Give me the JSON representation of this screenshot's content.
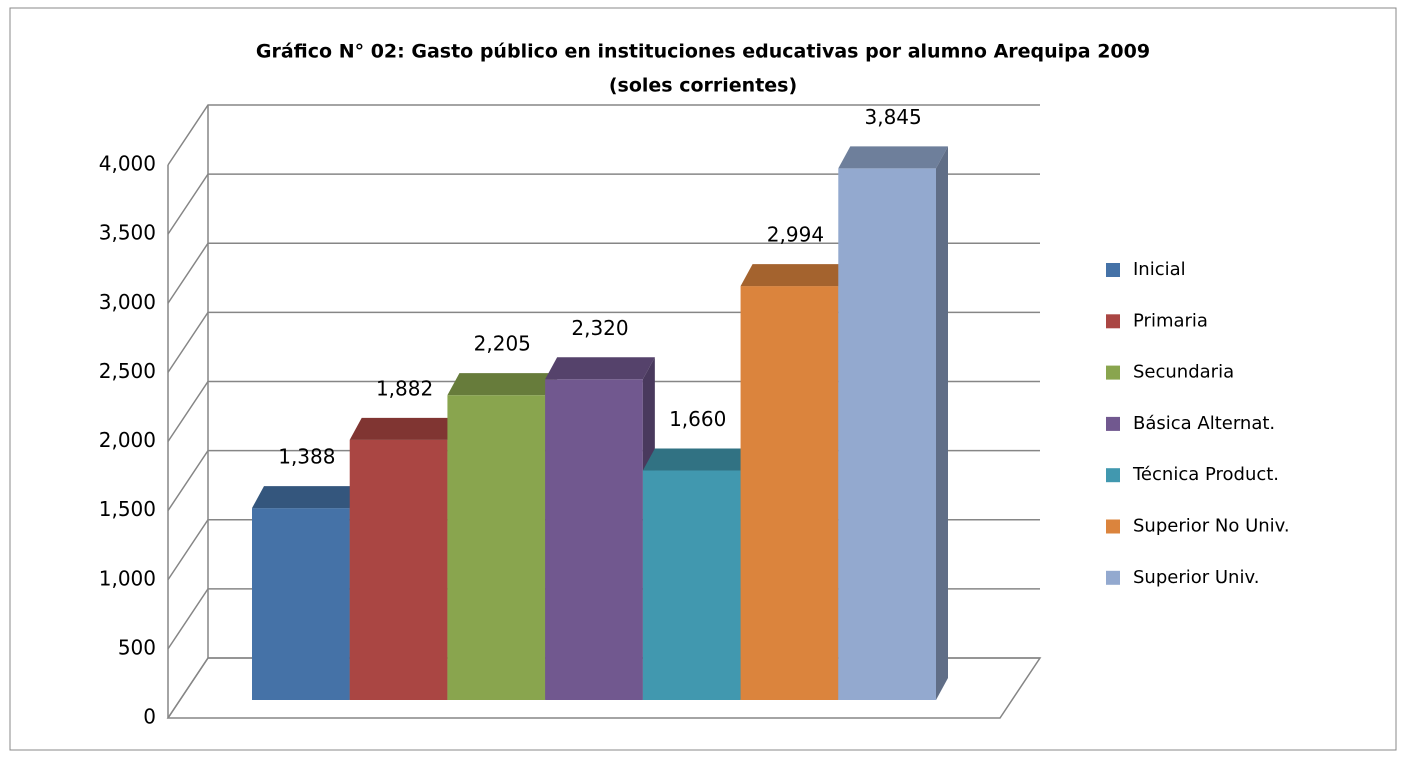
{
  "chart_data": {
    "type": "bar3d",
    "title": "Gráfico N° 02: Gasto público en instituciones educativas por alumno Arequipa 2009",
    "subtitle": "(soles corrientes)",
    "categories": [
      "Inicial",
      "Primaria",
      "Secundaria",
      "Básica Alternat.",
      "Técnica Product.",
      "Superior No Univ.",
      "Superior Univ."
    ],
    "values": [
      1388,
      1882,
      2205,
      2320,
      1660,
      2994,
      3845
    ],
    "value_labels": [
      "1,388",
      "1,882",
      "2,205",
      "2,320",
      "1,660",
      "2,994",
      "3,845"
    ],
    "colors": [
      "#4572a7",
      "#aa4643",
      "#89a54e",
      "#71588f",
      "#4198af",
      "#db843d",
      "#93a9cf"
    ],
    "ylim": [
      0,
      4000
    ],
    "yticks": [
      0,
      500,
      {
        "value": 1000,
        "label": "1,000"
      },
      {
        "value": 1500,
        "label": "1,500"
      },
      {
        "value": 2000,
        "label": "2,000"
      },
      {
        "value": 2500,
        "label": "2,500"
      },
      {
        "value": 3000,
        "label": "3,000"
      },
      {
        "value": 3500,
        "label": "3,500"
      },
      {
        "value": 4000,
        "label": "4,000"
      }
    ],
    "grid": true,
    "legend": "right"
  }
}
